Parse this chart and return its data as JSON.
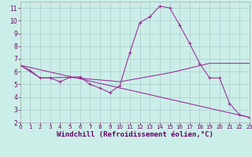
{
  "bg_color": "#cceee8",
  "grid_color": "#aacccc",
  "line_color": "#993399",
  "xlabel": "Windchill (Refroidissement éolien,°C)",
  "xlim": [
    0,
    23
  ],
  "ylim": [
    2,
    11.5
  ],
  "xticks": [
    0,
    1,
    2,
    3,
    4,
    5,
    6,
    7,
    8,
    9,
    10,
    11,
    12,
    13,
    14,
    15,
    16,
    17,
    18,
    19,
    20,
    21,
    22,
    23
  ],
  "yticks": [
    2,
    3,
    4,
    5,
    6,
    7,
    8,
    9,
    10,
    11
  ],
  "curve1_x": [
    0,
    1,
    2,
    3,
    4,
    5,
    6,
    7,
    8,
    9,
    10,
    11,
    12,
    13,
    14,
    15,
    16,
    17,
    18,
    19,
    20,
    21,
    22,
    23
  ],
  "curve1_y": [
    6.5,
    6.1,
    5.5,
    5.5,
    5.2,
    5.55,
    5.6,
    5.0,
    4.7,
    4.35,
    4.9,
    7.5,
    9.85,
    10.3,
    11.15,
    11.0,
    9.65,
    8.2,
    6.65,
    5.5,
    5.5,
    3.5,
    2.6,
    2.4
  ],
  "curve2_x": [
    0,
    23
  ],
  "curve2_y": [
    6.5,
    2.4
  ],
  "curve3_x": [
    0,
    2,
    5,
    10,
    15,
    19,
    20,
    23
  ],
  "curve3_y": [
    6.5,
    5.5,
    5.55,
    5.2,
    5.9,
    6.65,
    6.65,
    6.65
  ]
}
